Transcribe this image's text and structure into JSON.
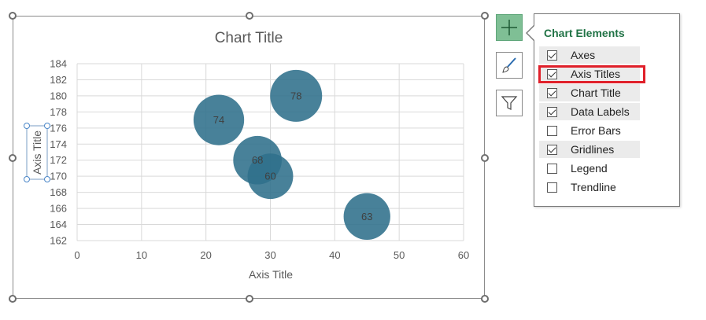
{
  "chart_data": {
    "type": "bubble",
    "title": "Chart Title",
    "xlabel": "Axis Title",
    "ylabel": "Axis Title",
    "xlim": [
      0,
      60
    ],
    "ylim": [
      162,
      184
    ],
    "x_ticks": [
      "0",
      "10",
      "20",
      "30",
      "40",
      "50",
      "60"
    ],
    "y_ticks": [
      "162",
      "164",
      "166",
      "168",
      "170",
      "172",
      "174",
      "176",
      "178",
      "180",
      "182",
      "184"
    ],
    "grid": true,
    "bubble_color": "#2f6f8b",
    "points": [
      {
        "x": 22,
        "y": 177,
        "label": "74"
      },
      {
        "x": 34,
        "y": 180,
        "label": "78"
      },
      {
        "x": 28,
        "y": 172,
        "label": "68"
      },
      {
        "x": 30,
        "y": 170,
        "label": "60"
      },
      {
        "x": 45,
        "y": 165,
        "label": "63"
      }
    ]
  },
  "side_buttons": {
    "add_icon": "plus-icon",
    "style_icon": "brush-icon",
    "filter_icon": "filter-icon"
  },
  "chart_elements_panel": {
    "title": "Chart Elements",
    "accent": "#217346",
    "highlight_color": "#e0202a",
    "options": [
      {
        "label": "Axes",
        "checked": true
      },
      {
        "label": "Axis Titles",
        "checked": true
      },
      {
        "label": "Chart Title",
        "checked": true
      },
      {
        "label": "Data Labels",
        "checked": true
      },
      {
        "label": "Error Bars",
        "checked": false
      },
      {
        "label": "Gridlines",
        "checked": true
      },
      {
        "label": "Legend",
        "checked": false
      },
      {
        "label": "Trendline",
        "checked": false
      }
    ]
  }
}
